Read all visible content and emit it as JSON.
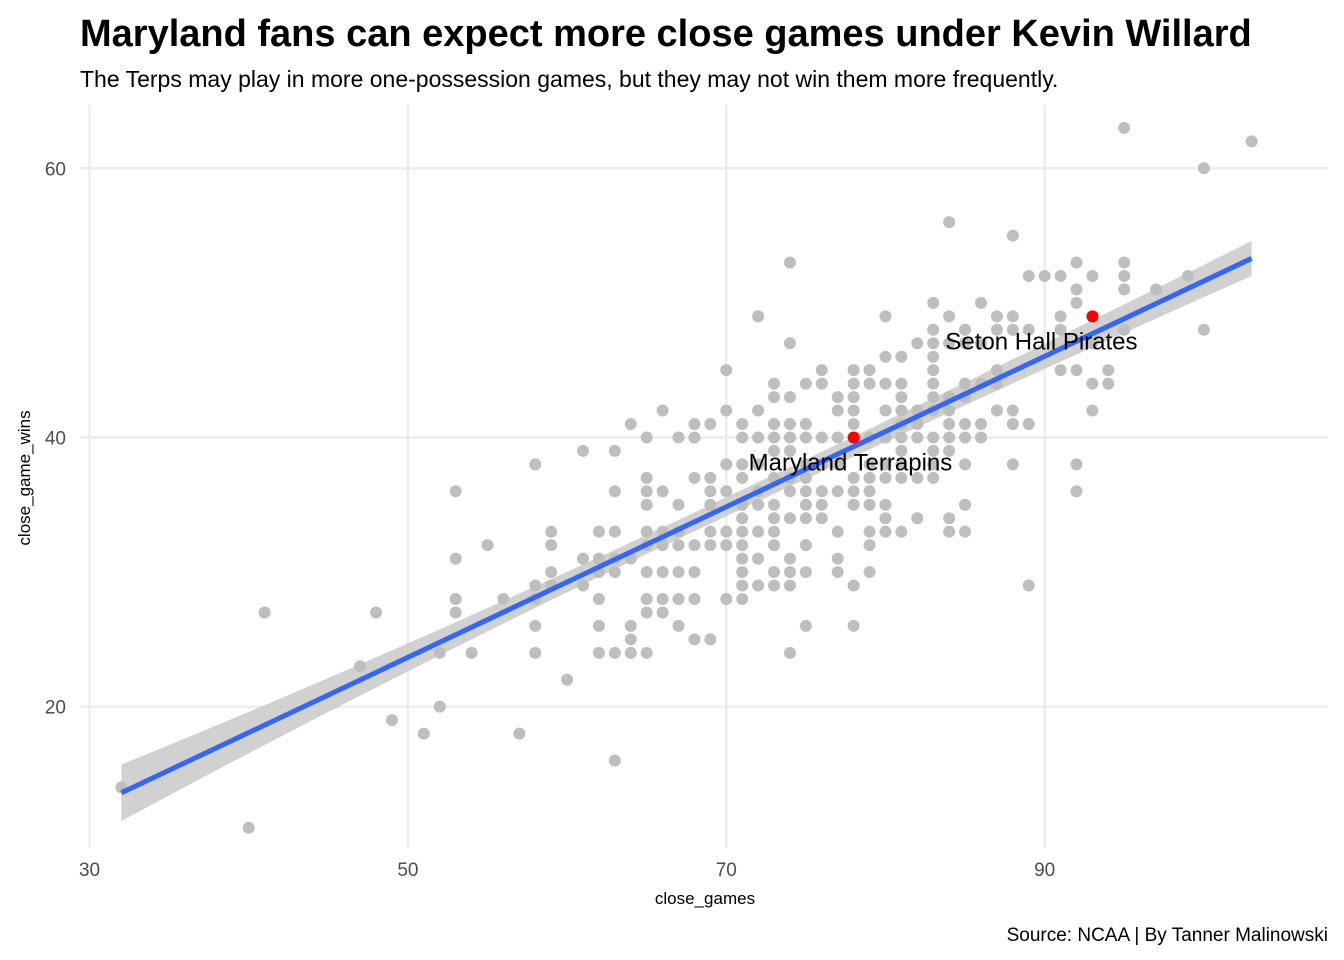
{
  "chart_data": {
    "type": "scatter",
    "title": "Maryland fans can expect more close games under Kevin Willard",
    "subtitle": "The Terps may play in more one-possession games, but they may not win them more frequently.",
    "caption": "Source: NCAA | By Tanner Malinowski",
    "xlabel": "close_games",
    "ylabel": "close_game_wins",
    "xlim": [
      29.4,
      107.8
    ],
    "ylim": [
      9.5,
      64.7
    ],
    "x_ticks": [
      30,
      50,
      70,
      90
    ],
    "y_ticks": [
      20,
      40,
      60
    ],
    "grid": true,
    "colors": {
      "points": "#bebebe",
      "highlight": "#ff0000",
      "trend_line": "#3366ff",
      "confidence_band": "#cccccc"
    },
    "trend_line": {
      "method": "linear",
      "x": [
        32,
        103
      ],
      "y": [
        13.6,
        53.3
      ],
      "ci_lower": [
        11.5,
        52.0
      ],
      "ci_upper": [
        15.7,
        54.6
      ]
    },
    "highlighted": [
      {
        "label": "Maryland Terrapins",
        "x": 78,
        "y": 40,
        "label_x": 77.8,
        "label_y": 38.2
      },
      {
        "label": "Seton Hall Pirates",
        "x": 93,
        "y": 49,
        "label_x": 89.8,
        "label_y": 47.2
      }
    ],
    "points": [
      [
        32,
        14
      ],
      [
        40,
        11
      ],
      [
        41,
        27
      ],
      [
        47,
        23
      ],
      [
        48,
        27
      ],
      [
        49,
        19
      ],
      [
        51,
        18
      ],
      [
        52,
        24
      ],
      [
        52,
        20
      ],
      [
        53,
        36
      ],
      [
        53,
        31
      ],
      [
        53,
        28
      ],
      [
        53,
        27
      ],
      [
        54,
        24
      ],
      [
        55,
        32
      ],
      [
        56,
        28
      ],
      [
        57,
        18
      ],
      [
        58,
        38
      ],
      [
        58,
        29
      ],
      [
        58,
        28
      ],
      [
        58,
        26
      ],
      [
        58,
        24
      ],
      [
        59,
        33
      ],
      [
        59,
        32
      ],
      [
        59,
        30
      ],
      [
        59,
        29
      ],
      [
        60,
        22
      ],
      [
        61,
        39
      ],
      [
        61,
        31
      ],
      [
        61,
        29
      ],
      [
        62,
        33
      ],
      [
        62,
        31
      ],
      [
        62,
        30
      ],
      [
        62,
        28
      ],
      [
        62,
        26
      ],
      [
        62,
        24
      ],
      [
        63,
        39
      ],
      [
        63,
        36
      ],
      [
        63,
        33
      ],
      [
        63,
        31
      ],
      [
        63,
        30
      ],
      [
        63,
        24
      ],
      [
        63,
        16
      ],
      [
        64,
        41
      ],
      [
        64,
        31
      ],
      [
        64,
        26
      ],
      [
        64,
        25
      ],
      [
        64,
        24
      ],
      [
        65,
        40
      ],
      [
        65,
        37
      ],
      [
        65,
        36
      ],
      [
        65,
        35
      ],
      [
        65,
        33
      ],
      [
        65,
        32
      ],
      [
        65,
        30
      ],
      [
        65,
        28
      ],
      [
        65,
        27
      ],
      [
        65,
        24
      ],
      [
        66,
        42
      ],
      [
        66,
        36
      ],
      [
        66,
        33
      ],
      [
        66,
        32
      ],
      [
        66,
        30
      ],
      [
        66,
        28
      ],
      [
        66,
        27
      ],
      [
        67,
        40
      ],
      [
        67,
        35
      ],
      [
        67,
        33
      ],
      [
        67,
        32
      ],
      [
        67,
        30
      ],
      [
        67,
        28
      ],
      [
        67,
        26
      ],
      [
        68,
        41
      ],
      [
        68,
        40
      ],
      [
        68,
        37
      ],
      [
        68,
        32
      ],
      [
        68,
        30
      ],
      [
        68,
        28
      ],
      [
        68,
        25
      ],
      [
        69,
        41
      ],
      [
        69,
        37
      ],
      [
        69,
        36
      ],
      [
        69,
        35
      ],
      [
        69,
        33
      ],
      [
        69,
        32
      ],
      [
        69,
        25
      ],
      [
        70,
        45
      ],
      [
        70,
        42
      ],
      [
        70,
        38
      ],
      [
        70,
        36
      ],
      [
        70,
        33
      ],
      [
        70,
        32
      ],
      [
        70,
        28
      ],
      [
        71,
        41
      ],
      [
        71,
        40
      ],
      [
        71,
        38
      ],
      [
        71,
        37
      ],
      [
        71,
        35
      ],
      [
        71,
        34
      ],
      [
        71,
        33
      ],
      [
        71,
        32
      ],
      [
        71,
        31
      ],
      [
        71,
        30
      ],
      [
        71,
        29
      ],
      [
        71,
        28
      ],
      [
        72,
        49
      ],
      [
        72,
        42
      ],
      [
        72,
        40
      ],
      [
        72,
        38
      ],
      [
        72,
        36
      ],
      [
        72,
        35
      ],
      [
        72,
        33
      ],
      [
        72,
        31
      ],
      [
        72,
        29
      ],
      [
        73,
        44
      ],
      [
        73,
        43
      ],
      [
        73,
        41
      ],
      [
        73,
        40
      ],
      [
        73,
        39
      ],
      [
        73,
        37
      ],
      [
        73,
        35
      ],
      [
        73,
        34
      ],
      [
        73,
        33
      ],
      [
        73,
        32
      ],
      [
        73,
        30
      ],
      [
        73,
        29
      ],
      [
        74,
        53
      ],
      [
        74,
        47
      ],
      [
        74,
        43
      ],
      [
        74,
        41
      ],
      [
        74,
        40
      ],
      [
        74,
        39
      ],
      [
        74,
        37
      ],
      [
        74,
        36
      ],
      [
        74,
        34
      ],
      [
        74,
        31
      ],
      [
        74,
        30
      ],
      [
        74,
        29
      ],
      [
        74,
        24
      ],
      [
        75,
        44
      ],
      [
        75,
        41
      ],
      [
        75,
        40
      ],
      [
        75,
        38
      ],
      [
        75,
        37
      ],
      [
        75,
        36
      ],
      [
        75,
        35
      ],
      [
        75,
        34
      ],
      [
        75,
        32
      ],
      [
        75,
        30
      ],
      [
        75,
        26
      ],
      [
        76,
        45
      ],
      [
        76,
        44
      ],
      [
        76,
        40
      ],
      [
        76,
        38
      ],
      [
        76,
        36
      ],
      [
        76,
        35
      ],
      [
        76,
        34
      ],
      [
        77,
        43
      ],
      [
        77,
        42
      ],
      [
        77,
        40
      ],
      [
        77,
        38
      ],
      [
        77,
        36
      ],
      [
        77,
        33
      ],
      [
        77,
        31
      ],
      [
        77,
        30
      ],
      [
        78,
        45
      ],
      [
        78,
        44
      ],
      [
        78,
        43
      ],
      [
        78,
        42
      ],
      [
        78,
        41
      ],
      [
        78,
        37
      ],
      [
        78,
        36
      ],
      [
        78,
        35
      ],
      [
        78,
        29
      ],
      [
        78,
        26
      ],
      [
        79,
        45
      ],
      [
        79,
        44
      ],
      [
        79,
        40
      ],
      [
        79,
        38
      ],
      [
        79,
        37
      ],
      [
        79,
        36
      ],
      [
        79,
        35
      ],
      [
        79,
        33
      ],
      [
        79,
        32
      ],
      [
        79,
        30
      ],
      [
        80,
        49
      ],
      [
        80,
        46
      ],
      [
        80,
        44
      ],
      [
        80,
        42
      ],
      [
        80,
        40
      ],
      [
        80,
        38
      ],
      [
        80,
        37
      ],
      [
        80,
        35
      ],
      [
        80,
        34
      ],
      [
        80,
        33
      ],
      [
        81,
        46
      ],
      [
        81,
        44
      ],
      [
        81,
        43
      ],
      [
        81,
        42
      ],
      [
        81,
        41
      ],
      [
        81,
        40
      ],
      [
        81,
        39
      ],
      [
        81,
        38
      ],
      [
        81,
        37
      ],
      [
        81,
        33
      ],
      [
        82,
        47
      ],
      [
        82,
        42
      ],
      [
        82,
        41
      ],
      [
        82,
        40
      ],
      [
        82,
        37
      ],
      [
        82,
        34
      ],
      [
        83,
        50
      ],
      [
        83,
        48
      ],
      [
        83,
        47
      ],
      [
        83,
        46
      ],
      [
        83,
        45
      ],
      [
        83,
        44
      ],
      [
        83,
        43
      ],
      [
        83,
        42
      ],
      [
        83,
        40
      ],
      [
        83,
        39
      ],
      [
        83,
        38
      ],
      [
        83,
        37
      ],
      [
        84,
        56
      ],
      [
        84,
        49
      ],
      [
        84,
        47
      ],
      [
        84,
        43
      ],
      [
        84,
        42
      ],
      [
        84,
        41
      ],
      [
        84,
        40
      ],
      [
        84,
        39
      ],
      [
        84,
        34
      ],
      [
        84,
        33
      ],
      [
        85,
        48
      ],
      [
        85,
        47
      ],
      [
        85,
        44
      ],
      [
        85,
        43
      ],
      [
        85,
        41
      ],
      [
        85,
        40
      ],
      [
        85,
        38
      ],
      [
        85,
        35
      ],
      [
        85,
        33
      ],
      [
        86,
        50
      ],
      [
        86,
        47
      ],
      [
        86,
        44
      ],
      [
        86,
        41
      ],
      [
        86,
        40
      ],
      [
        87,
        49
      ],
      [
        87,
        48
      ],
      [
        87,
        45
      ],
      [
        87,
        44
      ],
      [
        87,
        42
      ],
      [
        88,
        55
      ],
      [
        88,
        49
      ],
      [
        88,
        48
      ],
      [
        88,
        42
      ],
      [
        88,
        41
      ],
      [
        88,
        38
      ],
      [
        89,
        52
      ],
      [
        89,
        48
      ],
      [
        89,
        41
      ],
      [
        89,
        29
      ],
      [
        90,
        52
      ],
      [
        91,
        52
      ],
      [
        91,
        49
      ],
      [
        91,
        48
      ],
      [
        91,
        45
      ],
      [
        92,
        53
      ],
      [
        92,
        51
      ],
      [
        92,
        50
      ],
      [
        92,
        45
      ],
      [
        92,
        38
      ],
      [
        92,
        36
      ],
      [
        93,
        52
      ],
      [
        93,
        47
      ],
      [
        93,
        44
      ],
      [
        93,
        42
      ],
      [
        94,
        45
      ],
      [
        94,
        44
      ],
      [
        95,
        63
      ],
      [
        95,
        53
      ],
      [
        95,
        52
      ],
      [
        95,
        51
      ],
      [
        95,
        48
      ],
      [
        97,
        51
      ],
      [
        99,
        52
      ],
      [
        100,
        60
      ],
      [
        100,
        48
      ],
      [
        103,
        62
      ]
    ]
  }
}
